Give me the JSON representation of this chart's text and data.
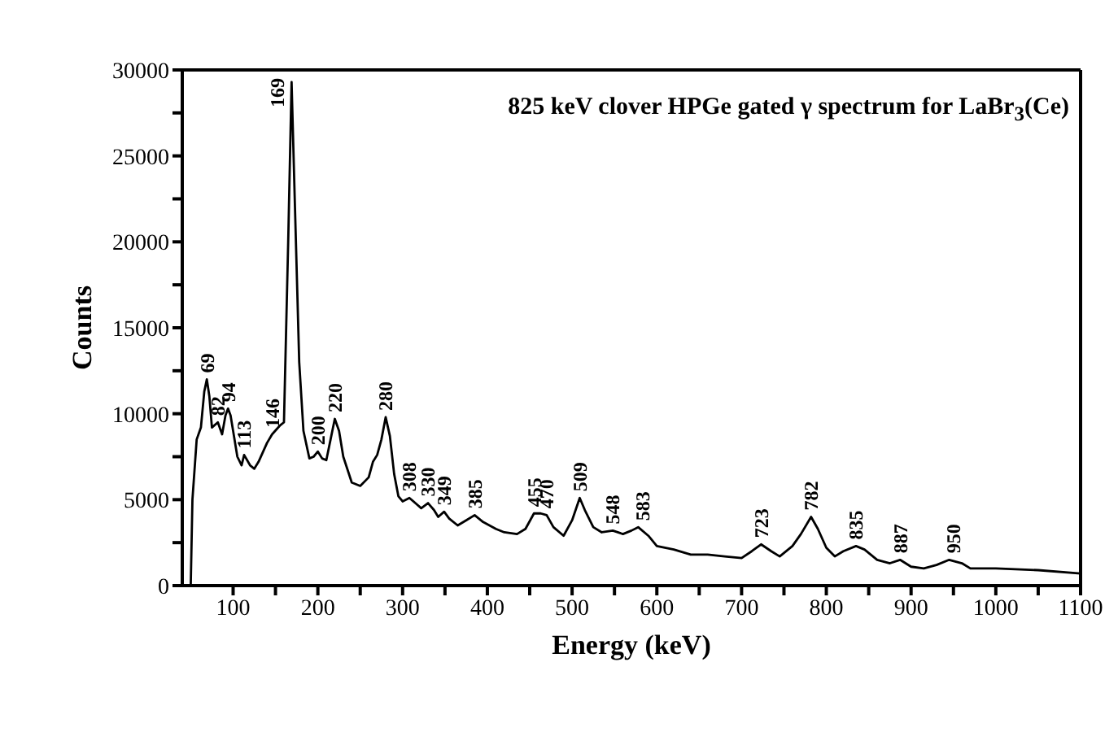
{
  "chart_data": {
    "type": "line",
    "title": "825 keV clover HPGe gated γ spectrum  for LaBr$_{3}$(Ce)",
    "xlabel": "Energy (keV)",
    "ylabel": "Counts",
    "xlim": [
      40,
      1100
    ],
    "xticks": [
      100,
      {
        "value": 150,
        "label": null
      },
      200,
      {
        "value": 250,
        "label": null
      },
      300,
      {
        "value": 350,
        "label": null
      },
      400,
      {
        "value": 450,
        "label": null
      },
      500,
      {
        "value": 550,
        "label": null
      },
      600,
      {
        "value": 650,
        "label": null
      },
      700,
      {
        "value": 750,
        "label": null
      },
      800,
      {
        "value": 850,
        "label": null
      },
      900,
      {
        "value": 950,
        "label": null
      },
      1000,
      {
        "value": 1050,
        "label": null
      },
      1100
    ],
    "ylim": [
      0,
      30000
    ],
    "yticks": [
      0,
      {
        "value": 2500,
        "label": null
      },
      5000,
      {
        "value": 7500,
        "label": null
      },
      10000,
      {
        "value": 12500,
        "label": null
      },
      15000,
      {
        "value": 17500,
        "label": null
      },
      20000,
      {
        "value": 22500,
        "label": null
      },
      25000,
      {
        "value": 27500,
        "label": null
      },
      30000
    ],
    "grid": false,
    "marker": "none",
    "line_style": "solid",
    "series": [
      {
        "color": "#000000",
        "x": [
          50,
          52,
          57,
          62,
          66,
          69,
          72,
          75,
          82,
          87,
          91,
          94,
          97,
          100,
          105,
          110,
          113,
          120,
          125,
          130,
          140,
          146,
          155,
          160,
          165,
          169,
          173,
          178,
          183,
          190,
          195,
          200,
          205,
          210,
          215,
          220,
          225,
          230,
          240,
          250,
          260,
          265,
          270,
          275,
          280,
          285,
          290,
          295,
          300,
          308,
          315,
          322,
          330,
          337,
          342,
          349,
          355,
          365,
          375,
          385,
          395,
          410,
          420,
          435,
          445,
          455,
          463,
          470,
          478,
          490,
          500,
          509,
          515,
          525,
          535,
          548,
          560,
          570,
          578,
          590,
          600,
          620,
          640,
          660,
          680,
          700,
          712,
          723,
          735,
          745,
          760,
          770,
          782,
          790,
          800,
          810,
          820,
          835,
          845,
          860,
          875,
          887,
          900,
          915,
          930,
          945,
          960,
          970,
          1000,
          1050,
          1100
        ],
        "values": [
          0,
          5000,
          8500,
          9200,
          11300,
          12000,
          11000,
          9200,
          9500,
          8800,
          9900,
          10300,
          9900,
          9000,
          7500,
          7000,
          7600,
          7000,
          6800,
          7200,
          8300,
          8800,
          9300,
          9500,
          20000,
          29300,
          22000,
          13000,
          9000,
          7400,
          7500,
          7800,
          7400,
          7300,
          8500,
          9700,
          9000,
          7500,
          6000,
          5800,
          6300,
          7200,
          7600,
          8500,
          9800,
          8700,
          6500,
          5200,
          4900,
          5100,
          4800,
          4500,
          4800,
          4400,
          4000,
          4300,
          3900,
          3500,
          3800,
          4100,
          3700,
          3300,
          3100,
          3000,
          3300,
          4200,
          4200,
          4100,
          3400,
          2900,
          3800,
          5100,
          4400,
          3400,
          3100,
          3200,
          3000,
          3200,
          3400,
          2900,
          2300,
          2100,
          1800,
          1800,
          1700,
          1600,
          2000,
          2400,
          2000,
          1700,
          2300,
          3000,
          4000,
          3300,
          2200,
          1700,
          2000,
          2300,
          2100,
          1500,
          1300,
          1500,
          1100,
          1000,
          1200,
          1500,
          1300,
          1000,
          1000,
          900,
          700
        ]
      }
    ],
    "annotations": [
      {
        "text": "69",
        "x": 69,
        "y": 12000
      },
      {
        "text": "82",
        "x": 82,
        "y": 9500
      },
      {
        "text": "94",
        "x": 94,
        "y": 10300
      },
      {
        "text": "113",
        "x": 113,
        "y": 7600
      },
      {
        "text": "146",
        "x": 146,
        "y": 8800
      },
      {
        "text": "169",
        "x": 169,
        "y": 29300
      },
      {
        "text": "200",
        "x": 200,
        "y": 7800
      },
      {
        "text": "220",
        "x": 220,
        "y": 9700
      },
      {
        "text": "280",
        "x": 280,
        "y": 9800
      },
      {
        "text": "308",
        "x": 308,
        "y": 5100
      },
      {
        "text": "330",
        "x": 330,
        "y": 4800
      },
      {
        "text": "349",
        "x": 349,
        "y": 4300
      },
      {
        "text": "385",
        "x": 385,
        "y": 4100
      },
      {
        "text": "455",
        "x": 455,
        "y": 4200
      },
      {
        "text": "470",
        "x": 470,
        "y": 4100
      },
      {
        "text": "509",
        "x": 509,
        "y": 5100
      },
      {
        "text": "548",
        "x": 548,
        "y": 3200
      },
      {
        "text": "583",
        "x": 583,
        "y": 3400
      },
      {
        "text": "723",
        "x": 723,
        "y": 2400
      },
      {
        "text": "782",
        "x": 782,
        "y": 4000
      },
      {
        "text": "835",
        "x": 835,
        "y": 2300
      },
      {
        "text": "887",
        "x": 887,
        "y": 1500
      },
      {
        "text": "950",
        "x": 950,
        "y": 1500
      }
    ]
  }
}
